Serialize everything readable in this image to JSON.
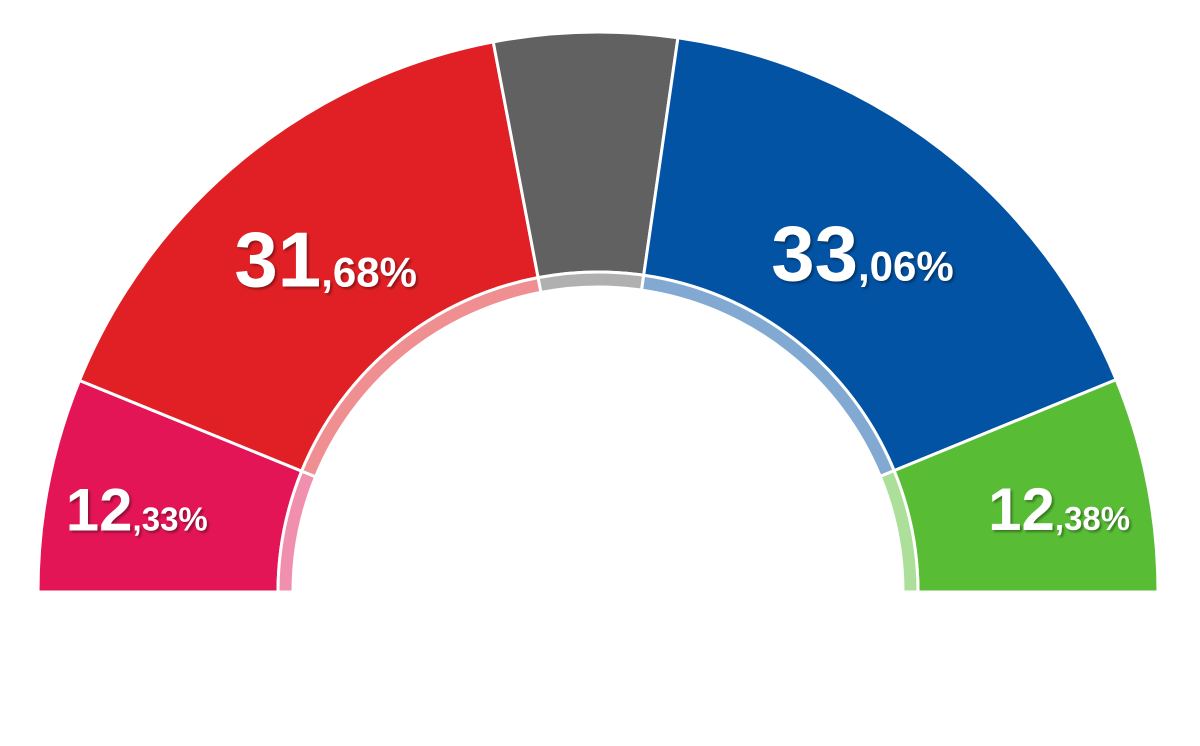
{
  "chart_data": {
    "type": "pie",
    "shape": "semicircle",
    "slices": [
      {
        "value": 12.33,
        "label_int": "12",
        "label_dec": ",33%",
        "color": "#e31557",
        "inner_color": "#f190ae",
        "show_label": true
      },
      {
        "value": 31.68,
        "label_int": "31",
        "label_dec": ",68%",
        "color": "#e02025",
        "inner_color": "#f08f92",
        "show_label": true
      },
      {
        "value": 10.55,
        "label_int": "",
        "label_dec": "",
        "color": "#616161",
        "inner_color": "#b0b0b0",
        "show_label": false
      },
      {
        "value": 33.06,
        "label_int": "33",
        "label_dec": ",06%",
        "color": "#0353a4",
        "inner_color": "#82a9d2",
        "show_label": true
      },
      {
        "value": 12.38,
        "label_int": "12",
        "label_dec": ",38%",
        "color": "#58bd35",
        "inner_color": "#acdf9a",
        "show_label": true
      }
    ]
  }
}
